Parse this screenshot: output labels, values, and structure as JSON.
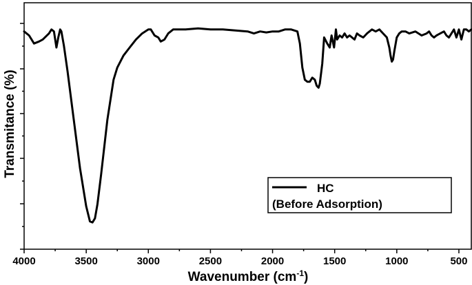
{
  "chart_data": {
    "type": "line",
    "xlabel": "Wavenumber (cm",
    "xlabel_sup": "-1",
    "xlabel_close": ")",
    "ylabel": "Transmitance (%)",
    "xlim": [
      4000,
      400
    ],
    "ylim": [
      0,
      100
    ],
    "x_reversed": true,
    "xticks": [
      4000,
      3500,
      3000,
      2500,
      2000,
      1500,
      1000,
      500
    ],
    "y_tick_labels_shown": false,
    "grid": false,
    "legend": {
      "position": "lower-right",
      "line1": "HC",
      "line2": "(Before Adsorption)"
    },
    "series": [
      {
        "name": "HC (Before Adsorption)",
        "color": "#000000",
        "x": [
          4000,
          3960,
          3920,
          3880,
          3850,
          3800,
          3780,
          3760,
          3740,
          3725,
          3710,
          3700,
          3680,
          3650,
          3600,
          3550,
          3500,
          3470,
          3450,
          3430,
          3410,
          3380,
          3330,
          3280,
          3250,
          3200,
          3150,
          3100,
          3050,
          3000,
          2980,
          2950,
          2920,
          2900,
          2870,
          2840,
          2800,
          2700,
          2600,
          2500,
          2400,
          2300,
          2200,
          2150,
          2100,
          2050,
          2000,
          1950,
          1900,
          1850,
          1800,
          1780,
          1760,
          1740,
          1720,
          1700,
          1680,
          1660,
          1645,
          1630,
          1620,
          1600,
          1585,
          1560,
          1540,
          1525,
          1515,
          1505,
          1490,
          1480,
          1460,
          1440,
          1420,
          1400,
          1380,
          1360,
          1340,
          1320,
          1300,
          1270,
          1240,
          1200,
          1170,
          1140,
          1110,
          1080,
          1060,
          1050,
          1040,
          1030,
          1020,
          1000,
          980,
          960,
          930,
          900,
          850,
          800,
          760,
          740,
          720,
          700,
          680,
          650,
          620,
          600,
          580,
          560,
          540,
          520,
          500,
          480,
          460,
          440,
          420,
          400
        ],
        "y": [
          96,
          94,
          90,
          91,
          92,
          95,
          97,
          96,
          88,
          93,
          97,
          96,
          89,
          76,
          52,
          28,
          9,
          1.5,
          1,
          3,
          10,
          25,
          52,
          72,
          78,
          84,
          88,
          92,
          95,
          97,
          97,
          94,
          93,
          91,
          92,
          95,
          97,
          97,
          97.5,
          97,
          97,
          96.5,
          96,
          95,
          96,
          95.5,
          96,
          96,
          97,
          97,
          96,
          90,
          78,
          72,
          71,
          71,
          73,
          72,
          69,
          68,
          70,
          80,
          93,
          90,
          88,
          94,
          91,
          88,
          97,
          92,
          94,
          93,
          95,
          93,
          94,
          93,
          92,
          95,
          94,
          93,
          95,
          97,
          96,
          97,
          95,
          93,
          88,
          84,
          81,
          82,
          86,
          93,
          95,
          96,
          96,
          95,
          96,
          94,
          95,
          96,
          94,
          93,
          94,
          95,
          96,
          94,
          93,
          95,
          97,
          93,
          97,
          92,
          97,
          97,
          96,
          97
        ]
      }
    ]
  }
}
